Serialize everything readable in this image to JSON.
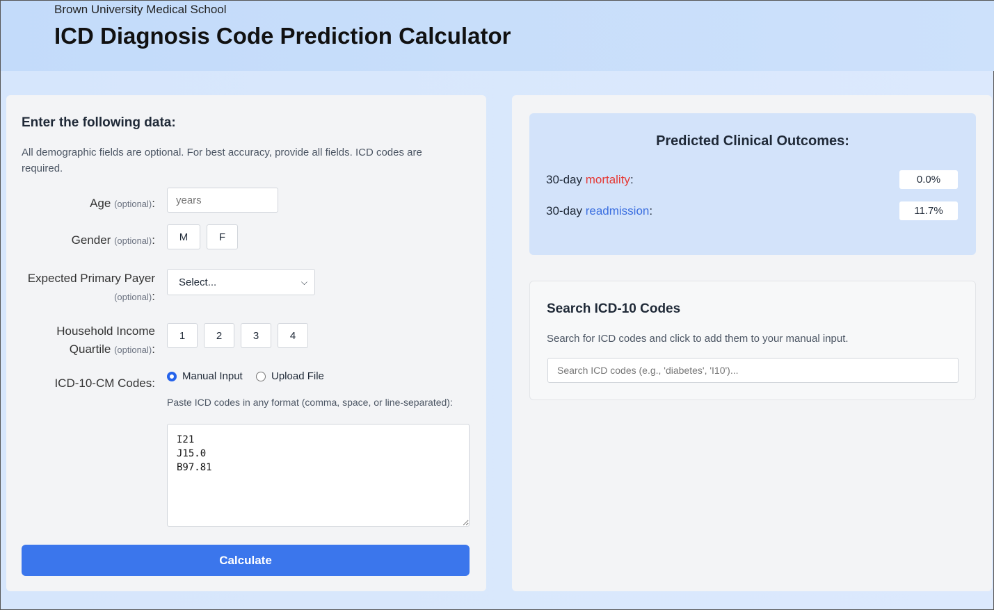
{
  "header": {
    "org": "Brown University Medical School",
    "title": "ICD Diagnosis Code Prediction Calculator"
  },
  "form": {
    "heading": "Enter the following data:",
    "intro": "All demographic fields are optional. For best accuracy, provide all fields. ICD codes are required.",
    "optional": "(optional)",
    "age": {
      "label": "Age",
      "placeholder": "years"
    },
    "gender": {
      "label": "Gender",
      "options": [
        "M",
        "F"
      ]
    },
    "payer": {
      "label": "Expected Primary Payer",
      "selected": "Select..."
    },
    "income": {
      "label1": "Household Income",
      "label2": "Quartile",
      "options": [
        "1",
        "2",
        "3",
        "4"
      ]
    },
    "icd": {
      "label": "ICD-10-CM Codes:",
      "modes": [
        "Manual Input",
        "Upload File"
      ],
      "selected_mode": "Manual Input",
      "hint": "Paste ICD codes in any format (comma, space, or line-separated):",
      "value": "I21\nJ15.0\nB97.81"
    },
    "calculate": "Calculate"
  },
  "outcomes": {
    "title": "Predicted Clinical Outcomes:",
    "rows": [
      {
        "prefix": "30-day ",
        "term": "mortality",
        "value": "0.0%",
        "color": "#e53935"
      },
      {
        "prefix": "30-day ",
        "term": "readmission",
        "value": "11.7%",
        "color": "#3b6fe0"
      }
    ]
  },
  "search": {
    "title": "Search ICD-10 Codes",
    "desc": "Search for ICD codes and click to add them to your manual input.",
    "placeholder": "Search ICD codes (e.g., 'diabetes', 'I10')..."
  }
}
